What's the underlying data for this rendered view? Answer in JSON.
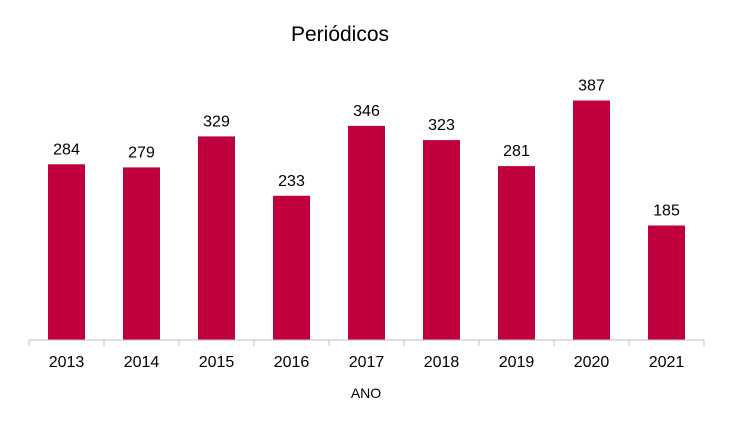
{
  "chart_data": {
    "type": "bar",
    "title": "Periódicos",
    "xlabel": "ANO",
    "ylabel": "",
    "categories": [
      "2013",
      "2014",
      "2015",
      "2016",
      "2017",
      "2018",
      "2019",
      "2020",
      "2021"
    ],
    "values": [
      284,
      279,
      329,
      233,
      346,
      323,
      281,
      387,
      185
    ],
    "ylim": [
      0,
      410
    ],
    "grid": false,
    "legend": "none",
    "bar_color": "#c0003c",
    "axis_color": "#bfbfbf"
  }
}
